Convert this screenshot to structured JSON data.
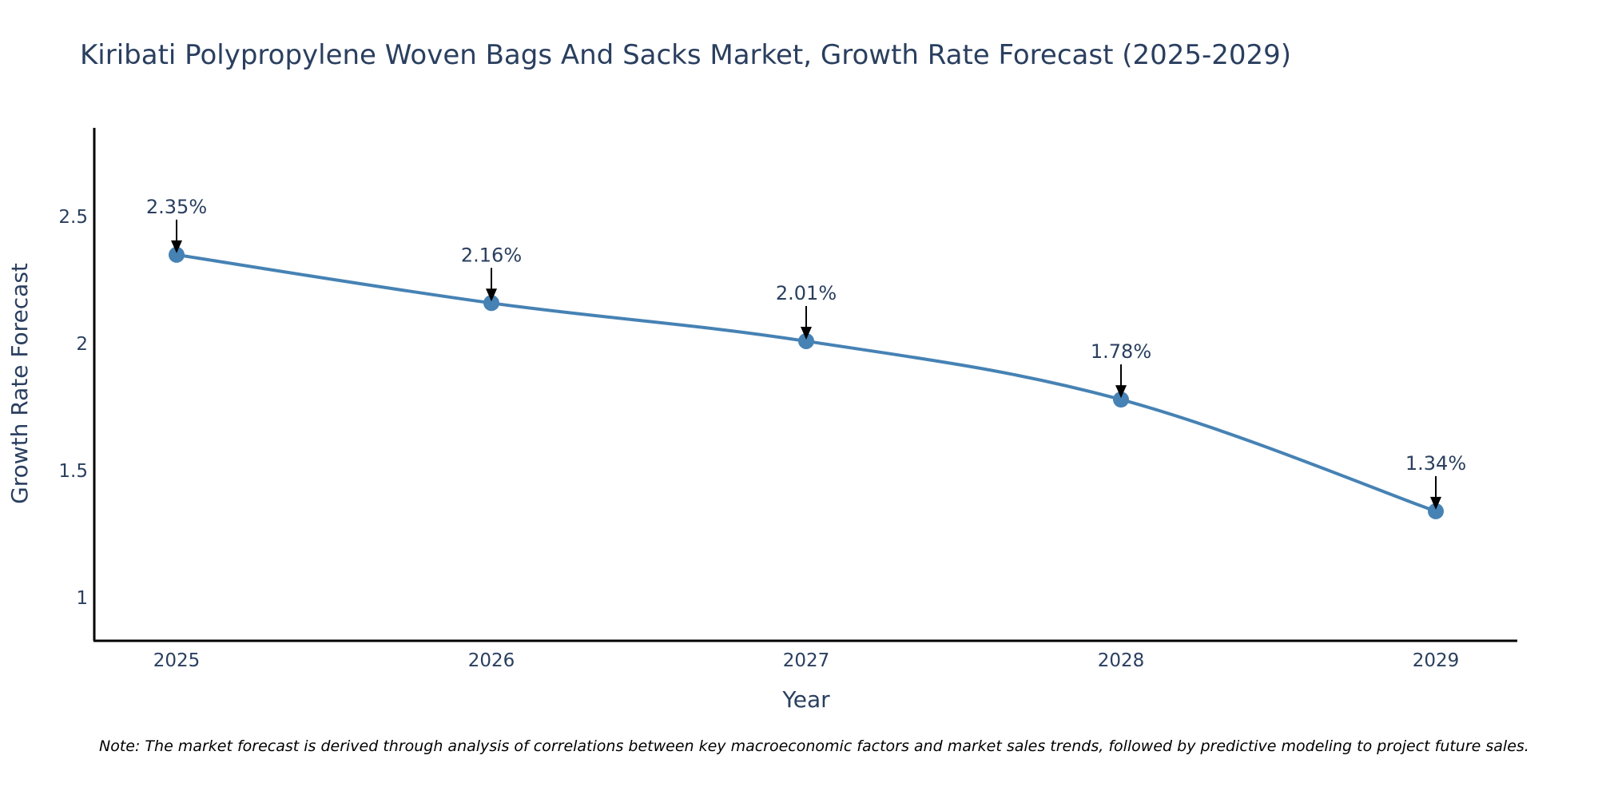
{
  "chart_data": {
    "type": "line",
    "title": "Kiribati Polypropylene Woven Bags And Sacks Market, Growth Rate Forecast (2025-2029)",
    "xlabel": "Year",
    "ylabel": "Growth Rate Forecast",
    "categories": [
      "2025",
      "2026",
      "2027",
      "2028",
      "2029"
    ],
    "series": [
      {
        "name": "Growth Rate Forecast",
        "values": [
          2.35,
          2.16,
          2.01,
          1.78,
          1.34
        ],
        "labels": [
          "2.35%",
          "2.16%",
          "2.01%",
          "1.78%",
          "1.34%"
        ]
      }
    ],
    "ylim": [
      0.83,
      2.85
    ],
    "yticks": [
      1,
      1.5,
      2,
      2.5
    ],
    "ytick_labels": [
      "1",
      "1.5",
      "2",
      "2.5"
    ],
    "grid": false,
    "line_shape": "spline",
    "colors": {
      "line": "#4682b4",
      "marker": "#4682b4",
      "axis": "#000000",
      "arrow": "#000000",
      "text": "#2a3f5f"
    }
  },
  "note": "Note: The market forecast is derived through analysis of correlations between key macroeconomic factors and market sales trends, followed by predictive modeling to project future sales."
}
